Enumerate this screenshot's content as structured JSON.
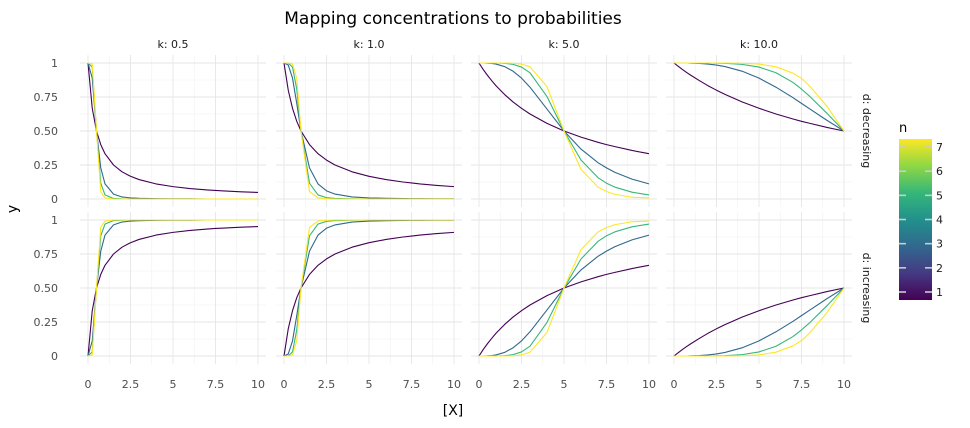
{
  "chart_data": {
    "type": "line",
    "title": "Mapping concentrations to probabilities",
    "xlabel": "[X]",
    "ylabel": "y",
    "xlim": [
      0,
      10
    ],
    "ylim": [
      0,
      1
    ],
    "x_ticks": [
      "0",
      "2.5",
      "5",
      "7.5",
      "10"
    ],
    "y_ticks": [
      "0",
      "0.25",
      "0.50",
      "0.75",
      "1"
    ],
    "grid": true,
    "facet_columns": [
      "k: 0.5",
      "k: 1.0",
      "k: 5.0",
      "k: 10.0"
    ],
    "facet_rows": [
      "d: decreasing",
      "d: increasing"
    ],
    "legend": {
      "title": "n",
      "position": "right",
      "type": "colorbar",
      "min": 1,
      "max": 7,
      "tick_labels": [
        "1",
        "2",
        "3",
        "4",
        "5",
        "6",
        "7"
      ],
      "colors": [
        "#440154",
        "#443a83",
        "#31688e",
        "#21918c",
        "#35b779",
        "#8fd744",
        "#fde725"
      ]
    },
    "x": [
      0,
      0.25,
      0.5,
      0.75,
      1,
      1.5,
      2,
      2.5,
      3,
      4,
      5,
      6,
      7,
      7.5,
      8,
      9,
      10
    ],
    "panels": [
      {
        "column": "k: 0.5",
        "row": "d: decreasing",
        "series": [
          {
            "n": 1,
            "values": [
              1,
              0.667,
              0.5,
              0.4,
              0.333,
              0.25,
              0.2,
              0.167,
              0.143,
              0.111,
              0.091,
              0.077,
              0.067,
              0.063,
              0.059,
              0.053,
              0.048
            ]
          },
          {
            "n": 3,
            "values": [
              1,
              0.889,
              0.5,
              0.229,
              0.111,
              0.036,
              0.015,
              0.008,
              0.005,
              0.002,
              0.001,
              0.001,
              0,
              0,
              0,
              0,
              0
            ]
          },
          {
            "n": 5,
            "values": [
              1,
              0.97,
              0.5,
              0.116,
              0.03,
              0.004,
              0.001,
              0,
              0,
              0,
              0,
              0,
              0,
              0,
              0,
              0,
              0
            ]
          },
          {
            "n": 7,
            "values": [
              1,
              0.992,
              0.5,
              0.055,
              0.008,
              0,
              0,
              0,
              0,
              0,
              0,
              0,
              0,
              0,
              0,
              0,
              0
            ]
          }
        ]
      },
      {
        "column": "k: 1.0",
        "row": "d: decreasing",
        "series": [
          {
            "n": 1,
            "values": [
              1,
              0.8,
              0.667,
              0.571,
              0.5,
              0.4,
              0.333,
              0.286,
              0.25,
              0.2,
              0.167,
              0.143,
              0.125,
              0.118,
              0.111,
              0.1,
              0.091
            ]
          },
          {
            "n": 3,
            "values": [
              1,
              0.985,
              0.889,
              0.703,
              0.5,
              0.229,
              0.111,
              0.06,
              0.036,
              0.015,
              0.008,
              0.005,
              0.003,
              0.002,
              0.002,
              0.001,
              0.001
            ]
          },
          {
            "n": 5,
            "values": [
              1,
              0.999,
              0.97,
              0.808,
              0.5,
              0.116,
              0.03,
              0.01,
              0.004,
              0.001,
              0,
              0,
              0,
              0,
              0,
              0,
              0
            ]
          },
          {
            "n": 7,
            "values": [
              1,
              1,
              0.992,
              0.887,
              0.5,
              0.055,
              0.008,
              0.002,
              0,
              0,
              0,
              0,
              0,
              0,
              0,
              0,
              0
            ]
          }
        ]
      },
      {
        "column": "k: 5.0",
        "row": "d: decreasing",
        "series": [
          {
            "n": 1,
            "values": [
              1,
              0.952,
              0.909,
              0.87,
              0.833,
              0.769,
              0.714,
              0.667,
              0.625,
              0.556,
              0.5,
              0.455,
              0.417,
              0.4,
              0.385,
              0.357,
              0.333
            ]
          },
          {
            "n": 3,
            "values": [
              1,
              1,
              0.999,
              0.997,
              0.992,
              0.974,
              0.94,
              0.889,
              0.822,
              0.661,
              0.5,
              0.367,
              0.267,
              0.229,
              0.196,
              0.146,
              0.111
            ]
          },
          {
            "n": 5,
            "values": [
              1,
              1,
              1,
              1,
              1,
              0.998,
              0.99,
              0.97,
              0.928,
              0.753,
              0.5,
              0.287,
              0.157,
              0.116,
              0.087,
              0.05,
              0.03
            ]
          },
          {
            "n": 7,
            "values": [
              1,
              1,
              1,
              1,
              1,
              1,
              0.998,
              0.992,
              0.972,
              0.827,
              0.5,
              0.218,
              0.087,
              0.055,
              0.034,
              0.013,
              0.008
            ]
          }
        ]
      },
      {
        "column": "k: 10.0",
        "row": "d: decreasing",
        "series": [
          {
            "n": 1,
            "values": [
              1,
              0.976,
              0.952,
              0.93,
              0.909,
              0.87,
              0.833,
              0.8,
              0.769,
              0.714,
              0.667,
              0.625,
              0.588,
              0.571,
              0.556,
              0.526,
              0.5
            ]
          },
          {
            "n": 3,
            "values": [
              1,
              1,
              1,
              1,
              0.999,
              0.997,
              0.992,
              0.985,
              0.974,
              0.94,
              0.889,
              0.822,
              0.745,
              0.703,
              0.661,
              0.578,
              0.5
            ]
          },
          {
            "n": 5,
            "values": [
              1,
              1,
              1,
              1,
              1,
              1,
              1,
              0.999,
              0.998,
              0.99,
              0.97,
              0.928,
              0.857,
              0.808,
              0.753,
              0.63,
              0.5
            ]
          },
          {
            "n": 7,
            "values": [
              1,
              1,
              1,
              1,
              1,
              1,
              1,
              1,
              1,
              0.998,
              0.992,
              0.972,
              0.925,
              0.887,
              0.827,
              0.681,
              0.5
            ]
          }
        ]
      },
      {
        "column": "k: 0.5",
        "row": "d: increasing",
        "series": [
          {
            "n": 1,
            "values": [
              0,
              0.333,
              0.5,
              0.6,
              0.667,
              0.75,
              0.8,
              0.833,
              0.857,
              0.889,
              0.909,
              0.923,
              0.933,
              0.938,
              0.941,
              0.947,
              0.952
            ]
          },
          {
            "n": 3,
            "values": [
              0,
              0.111,
              0.5,
              0.771,
              0.889,
              0.964,
              0.985,
              0.992,
              0.995,
              0.998,
              0.999,
              0.999,
              1,
              1,
              1,
              1,
              1
            ]
          },
          {
            "n": 5,
            "values": [
              0,
              0.03,
              0.5,
              0.884,
              0.97,
              0.996,
              0.999,
              1,
              1,
              1,
              1,
              1,
              1,
              1,
              1,
              1,
              1
            ]
          },
          {
            "n": 7,
            "values": [
              0,
              0.008,
              0.5,
              0.945,
              0.992,
              1,
              1,
              1,
              1,
              1,
              1,
              1,
              1,
              1,
              1,
              1,
              1
            ]
          }
        ]
      },
      {
        "column": "k: 1.0",
        "row": "d: increasing",
        "series": [
          {
            "n": 1,
            "values": [
              0,
              0.2,
              0.333,
              0.429,
              0.5,
              0.6,
              0.667,
              0.714,
              0.75,
              0.8,
              0.833,
              0.857,
              0.875,
              0.882,
              0.889,
              0.9,
              0.909
            ]
          },
          {
            "n": 3,
            "values": [
              0,
              0.015,
              0.111,
              0.297,
              0.5,
              0.771,
              0.889,
              0.94,
              0.964,
              0.985,
              0.992,
              0.995,
              0.997,
              0.998,
              0.998,
              0.999,
              0.999
            ]
          },
          {
            "n": 5,
            "values": [
              0,
              0.001,
              0.03,
              0.192,
              0.5,
              0.884,
              0.97,
              0.99,
              0.996,
              0.999,
              1,
              1,
              1,
              1,
              1,
              1,
              1
            ]
          },
          {
            "n": 7,
            "values": [
              0,
              0,
              0.008,
              0.113,
              0.5,
              0.945,
              0.992,
              0.998,
              1,
              1,
              1,
              1,
              1,
              1,
              1,
              1,
              1
            ]
          }
        ]
      },
      {
        "column": "k: 5.0",
        "row": "d: increasing",
        "series": [
          {
            "n": 1,
            "values": [
              0,
              0.048,
              0.091,
              0.13,
              0.167,
              0.231,
              0.286,
              0.333,
              0.375,
              0.444,
              0.5,
              0.545,
              0.583,
              0.6,
              0.615,
              0.643,
              0.667
            ]
          },
          {
            "n": 3,
            "values": [
              0,
              0,
              0.001,
              0.003,
              0.008,
              0.026,
              0.06,
              0.111,
              0.178,
              0.339,
              0.5,
              0.633,
              0.733,
              0.771,
              0.804,
              0.854,
              0.889
            ]
          },
          {
            "n": 5,
            "values": [
              0,
              0,
              0,
              0,
              0,
              0.002,
              0.01,
              0.03,
              0.072,
              0.247,
              0.5,
              0.713,
              0.843,
              0.884,
              0.913,
              0.95,
              0.97
            ]
          },
          {
            "n": 7,
            "values": [
              0,
              0,
              0,
              0,
              0,
              0,
              0.002,
              0.008,
              0.028,
              0.173,
              0.5,
              0.782,
              0.913,
              0.945,
              0.966,
              0.987,
              0.992
            ]
          }
        ]
      },
      {
        "column": "k: 10.0",
        "row": "d: increasing",
        "series": [
          {
            "n": 1,
            "values": [
              0,
              0.024,
              0.048,
              0.07,
              0.091,
              0.13,
              0.167,
              0.2,
              0.231,
              0.286,
              0.333,
              0.375,
              0.412,
              0.429,
              0.444,
              0.474,
              0.5
            ]
          },
          {
            "n": 3,
            "values": [
              0,
              0,
              0,
              0,
              0.001,
              0.003,
              0.008,
              0.015,
              0.026,
              0.06,
              0.111,
              0.178,
              0.255,
              0.297,
              0.339,
              0.422,
              0.5
            ]
          },
          {
            "n": 5,
            "values": [
              0,
              0,
              0,
              0,
              0,
              0,
              0,
              0.001,
              0.002,
              0.01,
              0.03,
              0.072,
              0.143,
              0.192,
              0.247,
              0.37,
              0.5
            ]
          },
          {
            "n": 7,
            "values": [
              0,
              0,
              0,
              0,
              0,
              0,
              0,
              0,
              0,
              0.002,
              0.008,
              0.028,
              0.075,
              0.113,
              0.173,
              0.319,
              0.5
            ]
          }
        ]
      }
    ]
  }
}
